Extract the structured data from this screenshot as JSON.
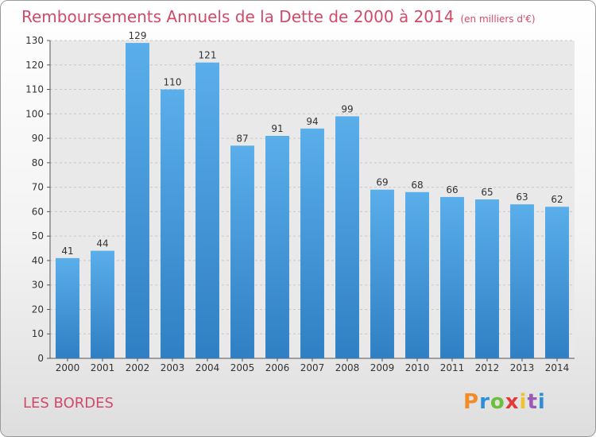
{
  "title": "Remboursements Annuels de la Dette de 2000 à 2014",
  "unit": "(en milliers d'€)",
  "commune": "LES BORDES",
  "brand": {
    "letters": [
      "P",
      "r",
      "o",
      "x",
      "i",
      "t",
      "i"
    ],
    "colors": [
      "#f28c28",
      "#2e8fd6",
      "#6cbf3c",
      "#e23a3a",
      "#f2c12e",
      "#9b59b6",
      "#2e8fd6"
    ]
  },
  "chart_data": {
    "type": "bar",
    "categories": [
      "2000",
      "2001",
      "2002",
      "2003",
      "2004",
      "2005",
      "2006",
      "2007",
      "2008",
      "2009",
      "2010",
      "2011",
      "2012",
      "2013",
      "2014"
    ],
    "values": [
      41,
      44,
      129,
      110,
      121,
      87,
      91,
      94,
      99,
      69,
      68,
      66,
      65,
      63,
      62
    ],
    "ylim": [
      0,
      130
    ],
    "yticks": [
      0,
      10,
      20,
      30,
      40,
      50,
      60,
      70,
      80,
      90,
      100,
      110,
      120,
      130
    ],
    "grid": true,
    "bar_color": "#3e95dc"
  }
}
